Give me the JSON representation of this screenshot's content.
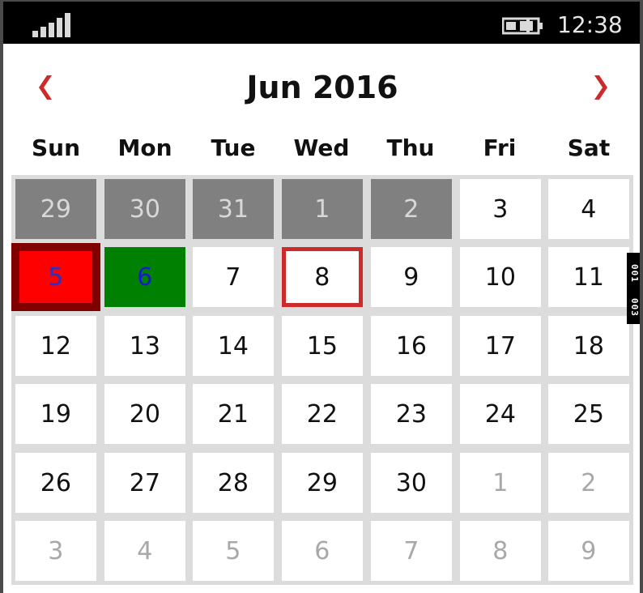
{
  "status_bar": {
    "time": "12:38",
    "signal_icon": "signal-strength-icon",
    "battery_icon": "battery-charging-icon"
  },
  "calendar": {
    "title": "Jun 2016",
    "prev_icon": "chevron-left-icon",
    "next_icon": "chevron-right-icon",
    "accent_color": "#cc2b2b",
    "weekdays": [
      "Sun",
      "Mon",
      "Tue",
      "Wed",
      "Thu",
      "Fri",
      "Sat"
    ],
    "weeks": [
      [
        {
          "day": "29",
          "state": "blackout"
        },
        {
          "day": "30",
          "state": "blackout"
        },
        {
          "day": "31",
          "state": "blackout"
        },
        {
          "day": "1",
          "state": "blackout"
        },
        {
          "day": "2",
          "state": "blackout"
        },
        {
          "day": "3",
          "state": "normal"
        },
        {
          "day": "4",
          "state": "normal"
        }
      ],
      [
        {
          "day": "5",
          "state": "selected"
        },
        {
          "day": "6",
          "state": "highlight"
        },
        {
          "day": "7",
          "state": "normal"
        },
        {
          "day": "8",
          "state": "today"
        },
        {
          "day": "9",
          "state": "normal"
        },
        {
          "day": "10",
          "state": "normal"
        },
        {
          "day": "11",
          "state": "normal"
        }
      ],
      [
        {
          "day": "12",
          "state": "normal"
        },
        {
          "day": "13",
          "state": "normal"
        },
        {
          "day": "14",
          "state": "normal"
        },
        {
          "day": "15",
          "state": "normal"
        },
        {
          "day": "16",
          "state": "normal"
        },
        {
          "day": "17",
          "state": "normal"
        },
        {
          "day": "18",
          "state": "normal"
        }
      ],
      [
        {
          "day": "19",
          "state": "normal"
        },
        {
          "day": "20",
          "state": "normal"
        },
        {
          "day": "21",
          "state": "normal"
        },
        {
          "day": "22",
          "state": "normal"
        },
        {
          "day": "23",
          "state": "normal"
        },
        {
          "day": "24",
          "state": "normal"
        },
        {
          "day": "25",
          "state": "normal"
        }
      ],
      [
        {
          "day": "26",
          "state": "normal"
        },
        {
          "day": "27",
          "state": "normal"
        },
        {
          "day": "28",
          "state": "normal"
        },
        {
          "day": "29",
          "state": "normal"
        },
        {
          "day": "30",
          "state": "normal"
        },
        {
          "day": "1",
          "state": "other"
        },
        {
          "day": "2",
          "state": "other"
        }
      ],
      [
        {
          "day": "3",
          "state": "other"
        },
        {
          "day": "4",
          "state": "other"
        },
        {
          "day": "5",
          "state": "other"
        },
        {
          "day": "6",
          "state": "other"
        },
        {
          "day": "7",
          "state": "other"
        },
        {
          "day": "8",
          "state": "other"
        },
        {
          "day": "9",
          "state": "other"
        }
      ]
    ]
  },
  "side_tab": {
    "top_label": "001",
    "bottom_label": "003"
  }
}
